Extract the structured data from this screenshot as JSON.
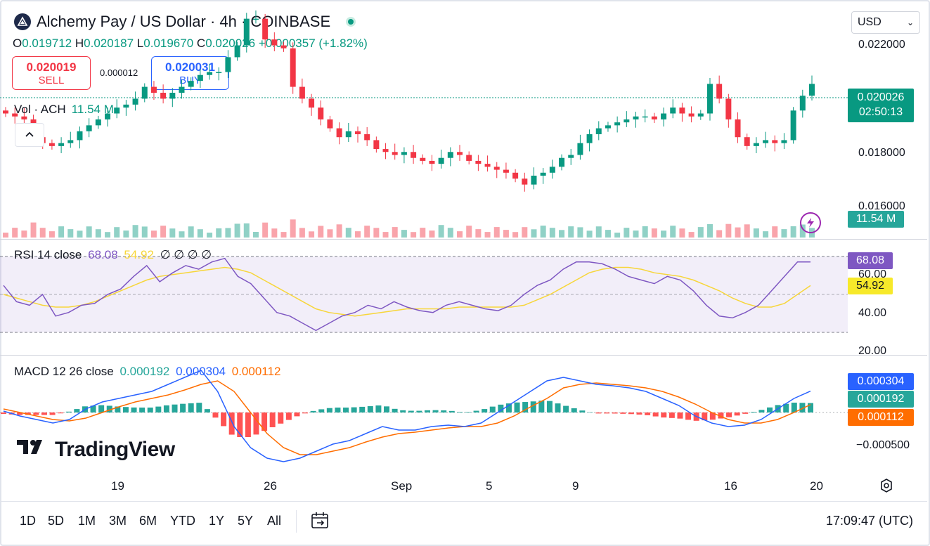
{
  "header": {
    "title": "Alchemy Pay / US Dollar · 4h · COINBASE",
    "ohlc": {
      "o_label": "O",
      "o": "0.019712",
      "h_label": "H",
      "h": "0.020187",
      "l_label": "L",
      "l": "0.019670",
      "c_label": "C",
      "c": "0.020026",
      "change": "+0.000357 (+1.82%)"
    },
    "sell": {
      "price": "0.020019",
      "label": "SELL"
    },
    "buy": {
      "price": "0.020031",
      "label": "BUY"
    },
    "spread": "0.000012",
    "currency": "USD"
  },
  "volume": {
    "label": "Vol · ACH",
    "value": "11.54 M",
    "badge": "11.54 M"
  },
  "price_axis": {
    "ticks": [
      "0.022000",
      "0.018000",
      "0.016000"
    ],
    "last_price": "0.020026",
    "countdown": "02:50:13"
  },
  "rsi": {
    "label": "RSI 14 close",
    "rsi_value": "68.08",
    "ma_value": "54.92",
    "extra": "∅ ∅ ∅ ∅",
    "ticks": [
      "60.00",
      "40.00",
      "20.00"
    ]
  },
  "macd": {
    "label": "MACD 12 26 close",
    "hist": "0.000192",
    "macd": "0.000304",
    "signal": "0.000112",
    "ticks": [
      "−0.000500"
    ]
  },
  "time_axis": [
    "19",
    "26",
    "Sep",
    "5",
    "9",
    "16",
    "20"
  ],
  "toolbar": {
    "ranges": [
      "1D",
      "5D",
      "1M",
      "3M",
      "6M",
      "YTD",
      "1Y",
      "5Y",
      "All"
    ],
    "clock": "17:09:47 (UTC)"
  },
  "brand": "TradingView",
  "colors": {
    "up": "#089981",
    "down": "#f23645",
    "rsi": "#7e57c2",
    "rsi_ma": "#f7d63a",
    "macd": "#2962ff",
    "signal": "#ff6d00",
    "accent": "#2962ff"
  },
  "chart_data": [
    {
      "type": "candlestick",
      "title": "Alchemy Pay / US Dollar · 4h · COINBASE",
      "ylim": [
        0.0155,
        0.0225
      ],
      "close": [
        0.019,
        0.0189,
        0.0188,
        0.0182,
        0.018,
        0.0179,
        0.018,
        0.0181,
        0.0184,
        0.0186,
        0.0188,
        0.019,
        0.0192,
        0.0193,
        0.0195,
        0.0199,
        0.0197,
        0.0195,
        0.0197,
        0.0199,
        0.0201,
        0.0203,
        0.0204,
        0.0204,
        0.0209,
        0.0213,
        0.0222,
        0.0222,
        0.0215,
        0.0213,
        0.0212,
        0.0199,
        0.0195,
        0.0192,
        0.0188,
        0.0185,
        0.0182,
        0.0184,
        0.0183,
        0.0181,
        0.0178,
        0.0177,
        0.0176,
        0.0177,
        0.0175,
        0.0174,
        0.0173,
        0.0175,
        0.0177,
        0.0176,
        0.0174,
        0.0173,
        0.0172,
        0.0171,
        0.017,
        0.0168,
        0.0166,
        0.0169,
        0.017,
        0.0172,
        0.0175,
        0.0176,
        0.018,
        0.0183,
        0.0185,
        0.0186,
        0.0187,
        0.0188,
        0.0189,
        0.0189,
        0.0188,
        0.019,
        0.0192,
        0.019,
        0.0189,
        0.019,
        0.02,
        0.0195,
        0.0188,
        0.0182,
        0.0179,
        0.018,
        0.0181,
        0.018,
        0.0181,
        0.0191,
        0.0196,
        0.02
      ],
      "volume_last": "11.54 M"
    },
    {
      "type": "line",
      "title": "RSI 14 close",
      "ylim": [
        20,
        80
      ],
      "series": [
        {
          "name": "RSI",
          "values": [
            55,
            46,
            44,
            50,
            38,
            40,
            44,
            45,
            50,
            53,
            60,
            66,
            57,
            62,
            66,
            64,
            68,
            70,
            60,
            56,
            48,
            40,
            38,
            34,
            30,
            34,
            38,
            40,
            44,
            42,
            46,
            43,
            41,
            40,
            44,
            46,
            44,
            42,
            41,
            44,
            50,
            55,
            58,
            64,
            68,
            68,
            67,
            64,
            60,
            58,
            56,
            60,
            58,
            52,
            44,
            38,
            37,
            40,
            44,
            52,
            60,
            68,
            68
          ]
        },
        {
          "name": "RSI MA",
          "values": [
            50,
            48,
            46,
            44,
            43,
            43,
            44,
            46,
            49,
            52,
            55,
            58,
            60,
            61,
            62,
            63,
            64,
            65,
            64,
            62,
            58,
            54,
            50,
            46,
            42,
            40,
            39,
            38,
            39,
            40,
            41,
            42,
            42,
            42,
            42,
            43,
            43,
            43,
            43,
            43,
            44,
            47,
            50,
            54,
            58,
            62,
            64,
            65,
            65,
            64,
            62,
            61,
            60,
            58,
            55,
            52,
            48,
            45,
            43,
            43,
            45,
            50,
            54.92
          ]
        }
      ]
    },
    {
      "type": "line",
      "title": "MACD 12 26 close",
      "series": [
        {
          "name": "MACD",
          "values": [
            2e-05,
            -5e-05,
            -0.0001,
            -0.00015,
            -0.0001,
            5e-05,
            0.00015,
            0.0002,
            0.00025,
            0.0003,
            0.0004,
            0.0005,
            0.0006,
            0.0003,
            -0.0002,
            -0.0005,
            -0.00065,
            -0.0007,
            -0.00065,
            -0.00055,
            -0.00045,
            -0.0004,
            -0.0003,
            -0.0002,
            -0.00025,
            -0.00025,
            -0.0002,
            -0.00018,
            -0.0002,
            -0.00015,
            0.0,
            0.00015,
            0.0003,
            0.00045,
            0.0005,
            0.00045,
            0.0004,
            0.00038,
            0.00035,
            0.0003,
            0.0002,
            0.0001,
            -5e-05,
            -0.00015,
            -0.0002,
            -0.00018,
            -0.0001,
            5e-05,
            0.0002,
            0.000304
          ]
        },
        {
          "name": "Signal",
          "values": [
            5e-05,
            0.0,
            -5e-05,
            -0.0001,
            -0.00012,
            -8e-05,
            0.0,
            8e-05,
            0.00015,
            0.0002,
            0.00025,
            0.00032,
            0.0004,
            0.00045,
            0.0003,
            0.0,
            -0.0003,
            -0.0005,
            -0.0006,
            -0.0006,
            -0.00055,
            -0.0005,
            -0.00042,
            -0.00035,
            -0.0003,
            -0.00028,
            -0.00025,
            -0.00022,
            -0.0002,
            -0.0002,
            -0.00015,
            -5e-05,
            8e-05,
            0.0002,
            0.00035,
            0.0004,
            0.00042,
            0.0004,
            0.00038,
            0.00035,
            0.0003,
            0.00022,
            0.00012,
            0.0,
            -0.0001,
            -0.00015,
            -0.00015,
            -0.0001,
            0.0,
            0.000112
          ]
        }
      ]
    }
  ]
}
